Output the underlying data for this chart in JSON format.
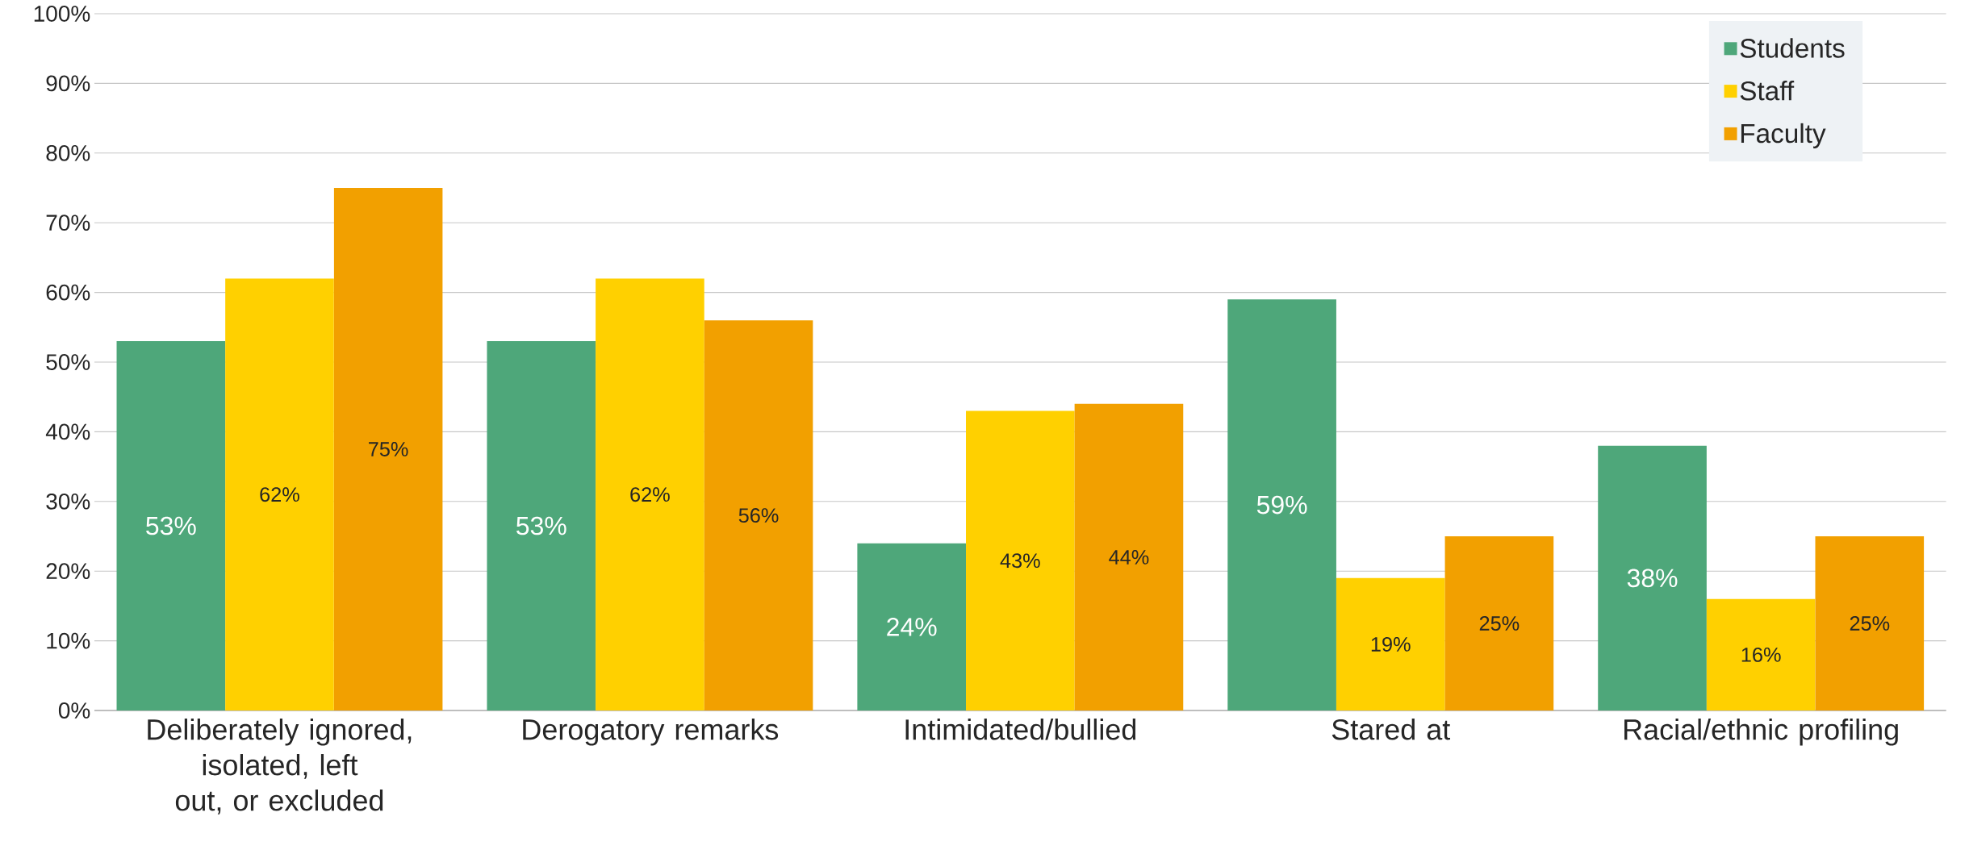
{
  "chart_data": {
    "type": "bar",
    "categories": [
      "Deliberately ignored, isolated, left out, or excluded",
      "Derogatory remarks",
      "Intimidated/bullied",
      "Stared at",
      "Racial/ethnic profiling"
    ],
    "series": [
      {
        "name": "Students",
        "color": "#4ea77a",
        "values": [
          53,
          53,
          24,
          59,
          38
        ],
        "value_labels": [
          "53%",
          "53%",
          "24%",
          "59%",
          "38%"
        ]
      },
      {
        "name": "Staff",
        "color": "#ffd000",
        "values": [
          62,
          62,
          43,
          19,
          16
        ],
        "value_labels": [
          "62%",
          "62%",
          "43%",
          "19%",
          "16%"
        ]
      },
      {
        "name": "Faculty",
        "color": "#f2a000",
        "values": [
          75,
          56,
          44,
          25,
          25
        ],
        "value_labels": [
          "75%",
          "56%",
          "44%",
          "25%",
          "25%"
        ]
      }
    ],
    "ylim": [
      0,
      100
    ],
    "yticks": [
      {
        "value": 0,
        "label": "0%"
      },
      {
        "value": 10,
        "label": "10%"
      },
      {
        "value": 20,
        "label": "20%"
      },
      {
        "value": 30,
        "label": "30%"
      },
      {
        "value": 40,
        "label": "40%"
      },
      {
        "value": 50,
        "label": "50%"
      },
      {
        "value": 60,
        "label": "60%"
      },
      {
        "value": 70,
        "label": "70%"
      },
      {
        "value": 80,
        "label": "80%"
      },
      {
        "value": 90,
        "label": "90%"
      },
      {
        "value": 100,
        "label": "100%"
      }
    ],
    "grid": "y",
    "legend": "top right"
  }
}
